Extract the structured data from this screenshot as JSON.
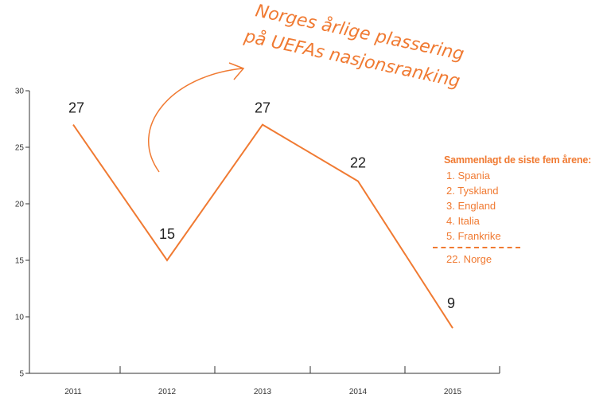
{
  "chart_data": {
    "type": "line",
    "x": [
      "2011",
      "2012",
      "2013",
      "2014",
      "2015"
    ],
    "values": [
      27,
      15,
      27,
      22,
      9
    ],
    "data_labels": [
      "27",
      "15",
      "27",
      "22",
      "9"
    ],
    "yticks": [
      "30",
      "25",
      "20",
      "15",
      "10",
      "5"
    ],
    "ylim": [
      5,
      30
    ],
    "title": "",
    "xlabel": "",
    "ylabel": "",
    "grid": false,
    "legend": "none",
    "line_color": "#f07a32",
    "annotation": {
      "line1": "Norges årlige plassering",
      "line2": "på UEFAs nasjonsranking"
    }
  },
  "sidebar": {
    "heading": "Sammenlagt de siste fem årene:",
    "items": [
      "1. Spania",
      "2. Tyskland",
      "3. England",
      "4. Italia",
      "5. Frankrike"
    ],
    "extra": "22. Norge",
    "color": "#f07a32"
  }
}
